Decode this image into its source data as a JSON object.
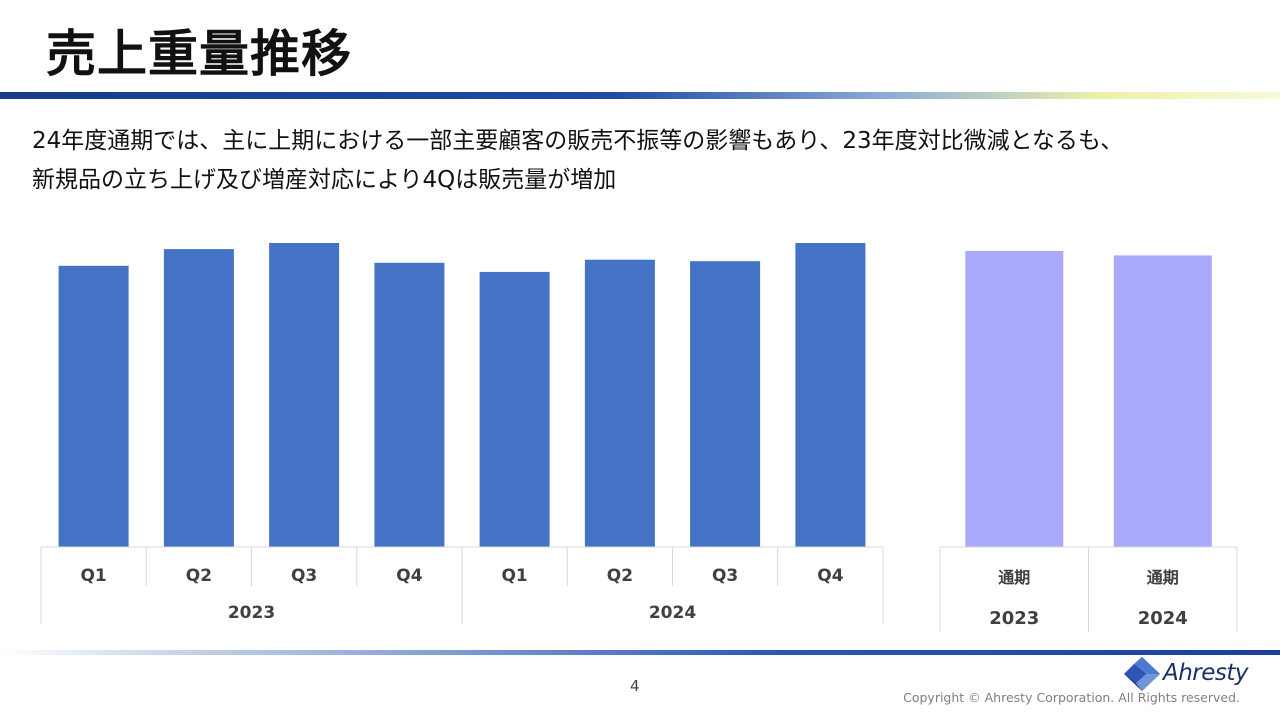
{
  "title": "売上重量推移",
  "body": {
    "line1": "24年度通期では、主に上期における一部主要顧客の販売不振等の影響もあり、23年度対比微減となるも、",
    "line2": "新規品の立ち上げ及び増産対応により4Qは販売量が増加"
  },
  "chart_data": [
    {
      "type": "bar",
      "categories": [
        "Q1",
        "Q2",
        "Q3",
        "Q4",
        "Q1",
        "Q2",
        "Q3",
        "Q4"
      ],
      "groups": [
        {
          "label": "2023",
          "count": 4
        },
        {
          "label": "2024",
          "count": 4
        }
      ],
      "values": [
        92.5,
        98,
        100,
        93.5,
        90.5,
        94.5,
        94,
        100
      ],
      "ylim": [
        0,
        100
      ],
      "color": "#4472c4"
    },
    {
      "type": "bar",
      "categories": [
        "通期",
        "通期"
      ],
      "groups": [
        {
          "label": "2023",
          "count": 1
        },
        {
          "label": "2024",
          "count": 1
        }
      ],
      "values": [
        100,
        98.5
      ],
      "ylim": [
        0,
        100
      ],
      "color": "#a9aafc"
    }
  ],
  "footer": {
    "page_number": "4",
    "logo_text": "Ahresty",
    "copyright": "Copyright © Ahresty Corporation. All Rights reserved."
  },
  "colors": {
    "title_rule_start": "#173c8c",
    "quarter_bar": "#4472c4",
    "annual_bar": "#a9aafc",
    "axis_line": "#d9d9d9",
    "logo": "#1a2f68"
  }
}
